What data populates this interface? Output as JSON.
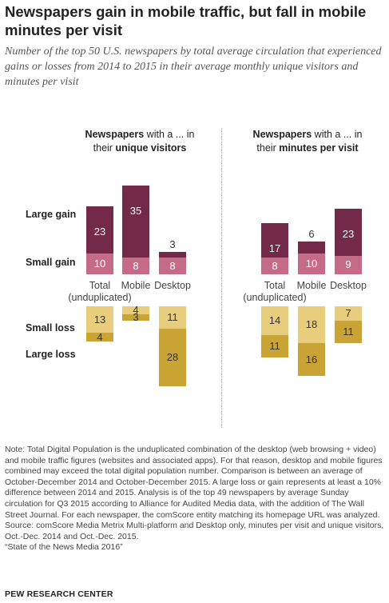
{
  "title": "Newspapers gain in mobile traffic, but fall in mobile minutes per visit",
  "subtitle": "Number of the top 50 U.S. newspapers by total average circulation that experienced gains or losses from 2014 to 2015 in their average monthly unique visitors and minutes per visit",
  "row_labels": [
    "Large gain",
    "Small gain",
    "Small loss",
    "Large loss"
  ],
  "colors": {
    "large_gain": "#722a48",
    "small_gain": "#c66b87",
    "small_loss": "#e8cd7c",
    "large_loss": "#c9a334"
  },
  "chart_data": [
    {
      "type": "bar",
      "title_pre": "Newspapers",
      "title_mid": " with a ... in",
      "title_line2_pre": "their ",
      "title_line2_bold": "unique visitors",
      "categories": [
        {
          "name": "Total",
          "sub": "(unduplicated)"
        },
        {
          "name": "Mobile",
          "sub": ""
        },
        {
          "name": "Desktop",
          "sub": ""
        }
      ],
      "series": [
        {
          "name": "Large gain",
          "values": [
            23,
            35,
            3
          ]
        },
        {
          "name": "Small gain",
          "values": [
            10,
            8,
            8
          ]
        },
        {
          "name": "Small loss",
          "values": [
            13,
            4,
            11
          ]
        },
        {
          "name": "Large loss",
          "values": [
            4,
            3,
            28
          ]
        }
      ]
    },
    {
      "type": "bar",
      "title_pre": "Newspapers",
      "title_mid": " with a ... in",
      "title_line2_pre": "their ",
      "title_line2_bold": "minutes per visit",
      "categories": [
        {
          "name": "Total",
          "sub": "(unduplicated)"
        },
        {
          "name": "Mobile",
          "sub": ""
        },
        {
          "name": "Desktop",
          "sub": ""
        }
      ],
      "series": [
        {
          "name": "Large gain",
          "values": [
            17,
            6,
            23
          ]
        },
        {
          "name": "Small gain",
          "values": [
            8,
            10,
            9
          ]
        },
        {
          "name": "Small loss",
          "values": [
            14,
            18,
            7
          ]
        },
        {
          "name": "Large loss",
          "values": [
            11,
            16,
            11
          ]
        }
      ]
    }
  ],
  "note": "Note: Total Digital Population is the unduplicated combination of the desktop (web browsing + video) and mobile traffic figures (websites and associated apps). For that reason, desktop and mobile figures combined may exceed the total digital population number. Comparison is between an average of October-December 2014 and October-December 2015. A large loss or gain represents at least a 10% difference between 2014 and 2015. Analysis is of the top 49 newspapers by average Sunday circulation for Q3 2015 according to Alliance for Audited Media data, with the addition of The Wall Street Journal. For each newspaper, the comScore entity matching its homepage URL was analyzed.",
  "source": "Source: comScore Media Metrix Multi-platform and Desktop only, minutes per visit and unique visitors, Oct.-Dec. 2014 and Oct.-Dec. 2015.",
  "report": "“State of the News Media 2016”",
  "footer": "PEW RESEARCH CENTER"
}
